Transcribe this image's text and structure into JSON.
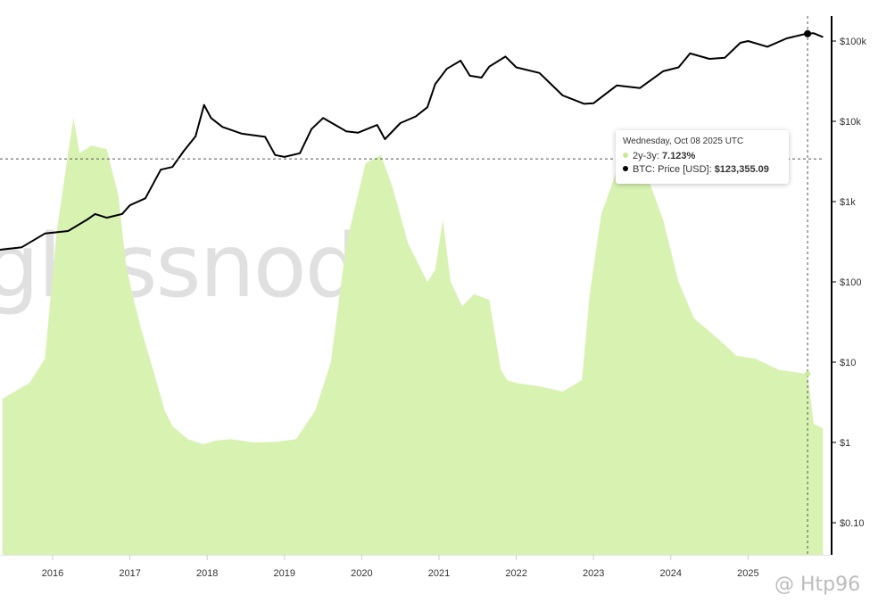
{
  "watermark": "glassnode",
  "corner_mark": "@ Htp96",
  "colors": {
    "area_fill": "#d8f2b2",
    "price_line": "#000000",
    "background": "#ffffff"
  },
  "tooltip": {
    "date": "Wednesday, Oct 08 2025 UTC",
    "series_1_label": "2y-3y: ",
    "series_1_value": "7.123%",
    "series_2_label": "BTC: Price [USD]: ",
    "series_2_value": "$123,355.09"
  },
  "chart_data": {
    "type": "area",
    "title": "",
    "xlabel": "",
    "ylabel": "",
    "x_ticks": [
      "2016",
      "2017",
      "2018",
      "2019",
      "2020",
      "2021",
      "2022",
      "2023",
      "2024",
      "2025"
    ],
    "right_axis": {
      "scale": "log",
      "ticks": [
        "$0.10",
        "$1",
        "$10",
        "$100",
        "$1k",
        "$10k",
        "$100k"
      ],
      "tick_values": [
        0.1,
        1,
        10,
        100,
        1000,
        10000,
        100000
      ]
    },
    "grid": false,
    "series": [
      {
        "name": "2y-3y",
        "kind": "area",
        "x": [
          2015.35,
          2015.7,
          2015.9,
          2016.05,
          2016.2,
          2016.27,
          2016.35,
          2016.5,
          2016.7,
          2016.85,
          2016.95,
          2017.05,
          2017.15,
          2017.3,
          2017.45,
          2017.55,
          2017.75,
          2017.95,
          2018.1,
          2018.3,
          2018.6,
          2018.9,
          2019.15,
          2019.4,
          2019.6,
          2019.8,
          2019.95,
          2020.05,
          2020.25,
          2020.4,
          2020.6,
          2020.85,
          2020.95,
          2021.05,
          2021.15,
          2021.3,
          2021.45,
          2021.65,
          2021.8,
          2021.88,
          2022.0,
          2022.3,
          2022.6,
          2022.85,
          2022.95,
          2023.1,
          2023.3,
          2023.5,
          2023.7,
          2023.9,
          2024.1,
          2024.3,
          2024.6,
          2024.85,
          2025.1,
          2025.4,
          2025.6,
          2025.77,
          2025.85,
          2025.97
        ],
        "y": [
          3.5,
          5.5,
          11,
          400,
          4000,
          11000,
          4000,
          5000,
          4500,
          1200,
          160,
          60,
          25,
          8,
          2.5,
          1.6,
          1.1,
          0.95,
          1.05,
          1.1,
          1.0,
          1.02,
          1.1,
          2.5,
          10,
          300,
          1200,
          3000,
          3800,
          1500,
          300,
          100,
          140,
          600,
          100,
          50,
          70,
          60,
          8,
          6,
          5.5,
          5.0,
          4.3,
          6,
          70,
          700,
          2400,
          2800,
          2000,
          600,
          100,
          35,
          20,
          12,
          11,
          8,
          7.5,
          7.123,
          1.7,
          1.5
        ]
      },
      {
        "name": "BTC: Price [USD]",
        "kind": "line",
        "x": [
          2015.0,
          2015.3,
          2015.6,
          2015.9,
          2016.2,
          2016.45,
          2016.55,
          2016.7,
          2016.9,
          2017.0,
          2017.2,
          2017.4,
          2017.55,
          2017.7,
          2017.85,
          2017.96,
          2018.05,
          2018.2,
          2018.45,
          2018.75,
          2018.88,
          2019.0,
          2019.2,
          2019.35,
          2019.5,
          2019.8,
          2019.95,
          2020.2,
          2020.3,
          2020.5,
          2020.7,
          2020.85,
          2020.95,
          2021.1,
          2021.28,
          2021.4,
          2021.55,
          2021.65,
          2021.86,
          2022.0,
          2022.3,
          2022.45,
          2022.6,
          2022.88,
          2023.0,
          2023.3,
          2023.6,
          2023.9,
          2024.1,
          2024.25,
          2024.5,
          2024.7,
          2024.9,
          2025.0,
          2025.25,
          2025.5,
          2025.75,
          2025.85,
          2025.97
        ],
        "y": [
          280,
          250,
          270,
          400,
          430,
          600,
          700,
          630,
          700,
          900,
          1100,
          2500,
          2700,
          4300,
          6500,
          16000,
          11000,
          8500,
          7000,
          6400,
          3800,
          3600,
          4000,
          8000,
          11000,
          7500,
          7200,
          9000,
          6000,
          9500,
          11500,
          15000,
          29000,
          45000,
          57000,
          37000,
          35000,
          48000,
          64000,
          47000,
          40000,
          29000,
          21000,
          16500,
          16800,
          28000,
          26000,
          42000,
          47000,
          70000,
          60000,
          62000,
          95000,
          100000,
          85000,
          108000,
          123000,
          125000,
          112000
        ]
      }
    ],
    "annotations": {
      "crosshair_x": 2025.77,
      "crosshair_y_price": 123355.09
    }
  }
}
